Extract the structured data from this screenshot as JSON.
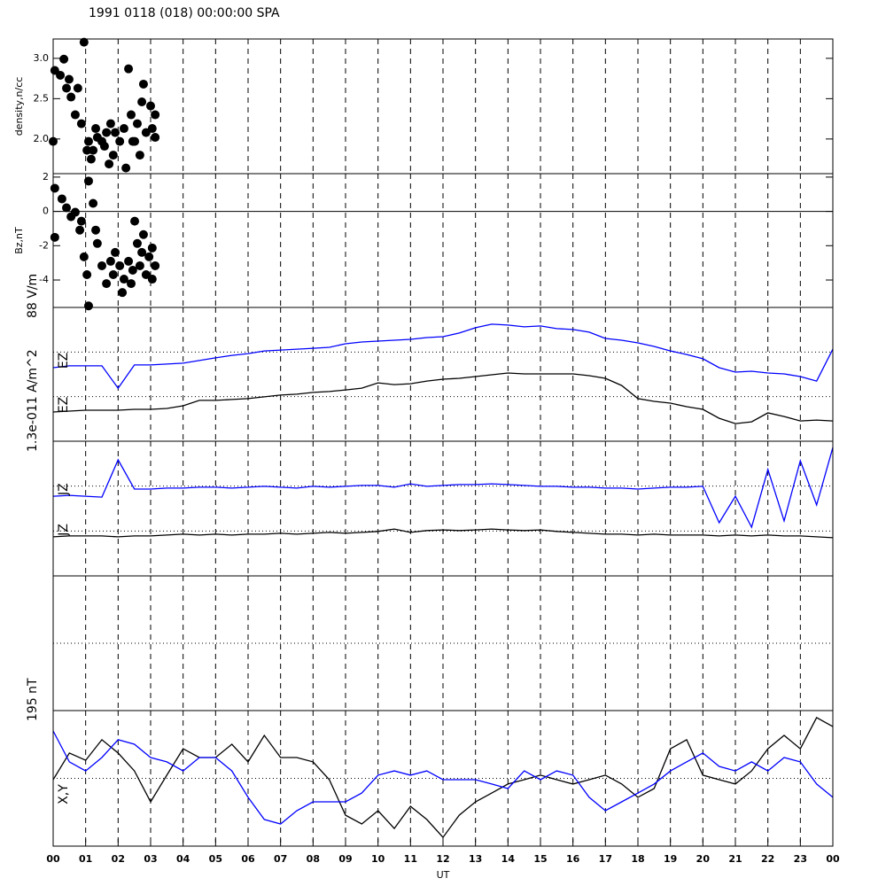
{
  "chart_data": [
    {
      "type": "scatter",
      "title": "1991 0118 (018) 00:00:00 SPA",
      "ylabel": "density,n/cc",
      "xlim": [
        0,
        24
      ],
      "ylim": [
        1.57,
        3.24
      ],
      "yticks": [
        {
          "value": 2.0,
          "label": "2.0"
        },
        {
          "value": 2.5,
          "label": "2.5"
        },
        {
          "value": 3.0,
          "label": "3.0"
        }
      ],
      "series": [
        {
          "color": "#000000",
          "x": [
            0,
            0.05,
            0.33,
            0.49,
            0.55,
            0.68,
            0.76,
            0.95,
            0.87,
            1.09,
            1.17,
            1.23,
            1.31,
            1.36,
            1.58,
            1.64,
            1.72,
            2.32,
            2.4,
            2.45,
            2.59,
            2.67,
            2.78,
            2.73,
            2.86,
            2.51,
            2.18,
            1.91,
            1.85,
            2.05,
            1.77,
            3.0,
            3.05,
            3.14,
            3.14,
            1.5,
            2.24,
            1.04,
            0.41,
            0.22
          ],
          "values": [
            1.97,
            2.85,
            2.99,
            2.74,
            2.52,
            2.3,
            2.63,
            3.2,
            2.19,
            1.97,
            1.75,
            1.86,
            2.13,
            2.02,
            1.91,
            2.08,
            1.69,
            2.87,
            2.3,
            1.97,
            2.19,
            1.8,
            2.68,
            2.46,
            2.08,
            1.97,
            2.13,
            2.08,
            1.8,
            1.97,
            2.19,
            2.41,
            2.13,
            2.02,
            2.3,
            1.97,
            1.64,
            1.86,
            2.63,
            2.79
          ]
        }
      ]
    },
    {
      "type": "scatter",
      "ylabel": "Bz,nT",
      "xlim": [
        0,
        24
      ],
      "ylim": [
        -5.6,
        2.2
      ],
      "yticks": [
        -4,
        -2,
        0,
        2
      ],
      "reference_lines": [
        0
      ],
      "reference_style": "solid",
      "series": [
        {
          "color": "#000000",
          "x": [
            0.05,
            0.05,
            0.27,
            0.41,
            0.55,
            0.68,
            0.82,
            0.95,
            1.04,
            1.09,
            1.23,
            1.31,
            1.36,
            1.5,
            1.64,
            1.77,
            1.85,
            1.91,
            2.05,
            2.13,
            2.18,
            2.32,
            2.4,
            2.45,
            2.51,
            2.59,
            2.67,
            2.73,
            2.78,
            2.86,
            2.95,
            3.05,
            3.14,
            3.05,
            1.09,
            0.87
          ],
          "values": [
            1.35,
            -1.51,
            0.73,
            0.21,
            -0.31,
            -0.05,
            -1.09,
            -2.65,
            -3.69,
            1.77,
            0.47,
            -1.09,
            -1.87,
            -3.17,
            -4.21,
            -2.91,
            -3.69,
            -2.39,
            -3.17,
            -4.73,
            -3.95,
            -2.91,
            -4.21,
            -3.43,
            -0.57,
            -1.87,
            -3.17,
            -2.39,
            -1.35,
            -3.69,
            -2.65,
            -2.13,
            -3.17,
            -3.95,
            -5.51,
            -0.57
          ]
        }
      ]
    },
    {
      "type": "line",
      "ylabel": "88 V/m",
      "xlim": [
        0,
        24
      ],
      "ylim": [
        0,
        6
      ],
      "reference_lines": [
        2,
        4
      ],
      "reference_style": "dotted",
      "x": [
        0,
        0.5,
        1,
        1.5,
        2,
        2.5,
        3,
        3.5,
        4,
        4.5,
        5,
        5.5,
        6,
        6.5,
        7,
        7.5,
        8,
        8.5,
        9,
        9.5,
        10,
        10.5,
        11,
        11.5,
        12,
        12.5,
        13,
        13.5,
        14,
        14.5,
        15,
        15.5,
        16,
        16.5,
        17,
        17.5,
        18,
        18.5,
        19,
        19.5,
        20,
        20.5,
        21,
        21.5,
        22,
        22.5,
        23,
        23.5,
        24
      ],
      "series": [
        {
          "name": "EZ",
          "color": "#0000ff",
          "values": [
            3.3,
            3.38,
            3.38,
            3.38,
            2.38,
            3.42,
            3.42,
            3.46,
            3.5,
            3.62,
            3.74,
            3.85,
            3.93,
            4.05,
            4.09,
            4.13,
            4.17,
            4.21,
            4.37,
            4.45,
            4.49,
            4.53,
            4.57,
            4.65,
            4.69,
            4.85,
            5.09,
            5.25,
            5.21,
            5.13,
            5.17,
            5.05,
            5.01,
            4.89,
            4.61,
            4.53,
            4.41,
            4.25,
            4.05,
            3.89,
            3.7,
            3.3,
            3.1,
            3.14,
            3.06,
            3.02,
            2.9,
            2.7,
            4.13
          ]
        },
        {
          "name": "EZ",
          "color": "#000000",
          "values": [
            1.31,
            1.35,
            1.39,
            1.39,
            1.39,
            1.43,
            1.43,
            1.47,
            1.59,
            1.83,
            1.83,
            1.87,
            1.91,
            1.99,
            2.07,
            2.11,
            2.19,
            2.23,
            2.3,
            2.38,
            2.62,
            2.54,
            2.58,
            2.7,
            2.78,
            2.82,
            2.9,
            2.98,
            3.06,
            3.02,
            3.02,
            3.02,
            3.02,
            2.94,
            2.82,
            2.5,
            1.91,
            1.79,
            1.71,
            1.55,
            1.43,
            1.03,
            0.79,
            0.87,
            1.27,
            1.11,
            0.91,
            0.95,
            0.91
          ]
        }
      ]
    },
    {
      "type": "line",
      "ylabel": "1.3e-011 A/m^2",
      "xlim": [
        0,
        24
      ],
      "ylim": [
        0,
        6
      ],
      "reference_lines": [
        2,
        4
      ],
      "reference_style": "dotted",
      "x": [
        0,
        0.5,
        1,
        1.5,
        2,
        2.5,
        3,
        3.5,
        4,
        4.5,
        5,
        5.5,
        6,
        6.5,
        7,
        7.5,
        8,
        8.5,
        9,
        9.5,
        10,
        10.5,
        11,
        11.5,
        12,
        12.5,
        13,
        13.5,
        14,
        14.5,
        15,
        15.5,
        16,
        16.5,
        17,
        17.5,
        18,
        18.5,
        19,
        19.5,
        20,
        20.5,
        21,
        21.5,
        22,
        22.5,
        23,
        23.5,
        24
      ],
      "series": [
        {
          "name": "JZ",
          "color": "#0000ff",
          "values": [
            3.55,
            3.59,
            3.55,
            3.51,
            5.17,
            3.87,
            3.87,
            3.91,
            3.91,
            3.95,
            3.95,
            3.91,
            3.95,
            3.99,
            3.95,
            3.91,
            3.99,
            3.95,
            3.99,
            4.03,
            4.03,
            3.95,
            4.1,
            3.99,
            4.03,
            4.07,
            4.07,
            4.1,
            4.07,
            4.03,
            3.99,
            3.99,
            3.95,
            3.95,
            3.91,
            3.91,
            3.87,
            3.91,
            3.95,
            3.95,
            3.99,
            2.37,
            3.55,
            2.17,
            4.74,
            2.45,
            5.13,
            3.16,
            5.72
          ]
        },
        {
          "name": "JZ",
          "color": "#000000",
          "values": [
            1.74,
            1.78,
            1.78,
            1.78,
            1.74,
            1.78,
            1.78,
            1.82,
            1.86,
            1.82,
            1.86,
            1.82,
            1.86,
            1.86,
            1.9,
            1.86,
            1.9,
            1.94,
            1.9,
            1.94,
            1.98,
            2.09,
            1.94,
            2.02,
            2.05,
            2.02,
            2.05,
            2.09,
            2.05,
            2.02,
            2.05,
            1.98,
            1.94,
            1.9,
            1.86,
            1.86,
            1.82,
            1.86,
            1.82,
            1.82,
            1.82,
            1.78,
            1.82,
            1.78,
            1.82,
            1.78,
            1.78,
            1.74,
            1.7
          ]
        }
      ]
    },
    {
      "type": "line",
      "xlim": [
        0,
        24
      ],
      "ylim": [
        0,
        6
      ],
      "reference_lines": [
        3
      ],
      "reference_style": "dotted",
      "series": []
    },
    {
      "type": "line",
      "ylabel": "195 nT",
      "label": "X,Y",
      "xlabel": "UT",
      "xlim": [
        0,
        24
      ],
      "ylim": [
        0,
        6
      ],
      "reference_lines": [
        3
      ],
      "reference_style": "dotted",
      "xticks": [
        {
          "value": 0,
          "label": "00"
        },
        {
          "value": 1,
          "label": "01"
        },
        {
          "value": 2,
          "label": "02"
        },
        {
          "value": 3,
          "label": "03"
        },
        {
          "value": 4,
          "label": "04"
        },
        {
          "value": 5,
          "label": "05"
        },
        {
          "value": 6,
          "label": "06"
        },
        {
          "value": 7,
          "label": "07"
        },
        {
          "value": 8,
          "label": "08"
        },
        {
          "value": 9,
          "label": "09"
        },
        {
          "value": 10,
          "label": "10"
        },
        {
          "value": 11,
          "label": "11"
        },
        {
          "value": 12,
          "label": "12"
        },
        {
          "value": 13,
          "label": "13"
        },
        {
          "value": 14,
          "label": "14"
        },
        {
          "value": 15,
          "label": "15"
        },
        {
          "value": 16,
          "label": "16"
        },
        {
          "value": 17,
          "label": "17"
        },
        {
          "value": 18,
          "label": "18"
        },
        {
          "value": 19,
          "label": "19"
        },
        {
          "value": 20,
          "label": "20"
        },
        {
          "value": 21,
          "label": "21"
        },
        {
          "value": 22,
          "label": "22"
        },
        {
          "value": 23,
          "label": "23"
        },
        {
          "value": 24,
          "label": "00"
        }
      ],
      "x": [
        0,
        0.5,
        1,
        1.5,
        2,
        2.5,
        3,
        3.5,
        4,
        4.5,
        5,
        5.5,
        6,
        6.5,
        7,
        7.5,
        8,
        8.5,
        9,
        9.5,
        10,
        10.5,
        11,
        11.5,
        12,
        12.5,
        13,
        13.5,
        14,
        14.5,
        15,
        15.5,
        16,
        16.5,
        17,
        17.5,
        18,
        18.5,
        19,
        19.5,
        20,
        20.5,
        21,
        21.5,
        22,
        22.5,
        23,
        23.5,
        24
      ],
      "series": [
        {
          "color": "#000000",
          "values": [
            2.94,
            4.12,
            3.8,
            4.71,
            4.12,
            3.33,
            1.96,
            3.14,
            4.31,
            3.92,
            3.92,
            4.51,
            3.73,
            4.9,
            3.92,
            3.92,
            3.73,
            2.94,
            1.37,
            0.98,
            1.57,
            0.78,
            1.76,
            1.18,
            0.39,
            1.37,
            1.96,
            2.35,
            2.75,
            2.94,
            3.14,
            2.94,
            2.75,
            2.94,
            3.14,
            2.75,
            2.16,
            2.55,
            4.31,
            4.71,
            3.14,
            2.94,
            2.75,
            3.33,
            4.31,
            4.9,
            4.31,
            5.69,
            5.29
          ]
        },
        {
          "color": "#0000ff",
          "values": [
            5.1,
            3.73,
            3.33,
            3.92,
            4.71,
            4.51,
            3.92,
            3.73,
            3.33,
            3.92,
            3.92,
            3.33,
            2.16,
            1.18,
            0.98,
            1.57,
            1.96,
            1.96,
            1.96,
            2.35,
            3.14,
            3.33,
            3.14,
            3.33,
            2.94,
            2.94,
            2.94,
            2.75,
            2.55,
            3.33,
            2.94,
            3.33,
            3.14,
            2.16,
            1.57,
            1.96,
            2.35,
            2.75,
            3.33,
            3.73,
            4.12,
            3.53,
            3.33,
            3.73,
            3.33,
            3.92,
            3.73,
            2.75,
            2.16
          ]
        }
      ]
    }
  ]
}
